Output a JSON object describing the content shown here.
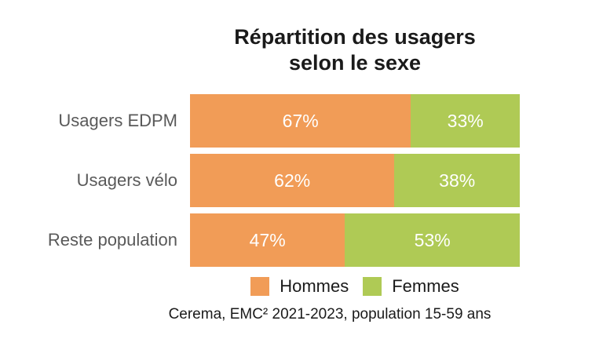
{
  "title": {
    "line1": "Répartition des usagers",
    "line2": "selon le sexe"
  },
  "source": "Cerema, EMC² 2021-2023, population 15-59 ans",
  "colors": {
    "hommes_orange": "#F19C57",
    "femmes_green": "#AFCA55",
    "category_label_gray": "#595959",
    "title_black": "#1A1A1A",
    "value_label_white": "#FFFFFF"
  },
  "chart_data": {
    "type": "bar",
    "orientation": "horizontal-stacked",
    "title": "Répartition des usagers selon le sexe",
    "categories": [
      "Usagers EDPM",
      "Usagers vélo",
      "Reste population"
    ],
    "series": [
      {
        "name": "Hommes",
        "color": "#F19C57",
        "values": [
          67,
          62,
          47
        ],
        "value_labels": [
          "67%",
          "62%",
          "47%"
        ]
      },
      {
        "name": "Femmes",
        "color": "#AFCA55",
        "values": [
          33,
          38,
          53
        ],
        "value_labels": [
          "33%",
          "38%",
          "53%"
        ]
      }
    ],
    "xlim": [
      0,
      100
    ],
    "grid": false,
    "legend_position": "bottom",
    "annotation": "Cerema, EMC² 2021-2023, population 15-59 ans"
  }
}
